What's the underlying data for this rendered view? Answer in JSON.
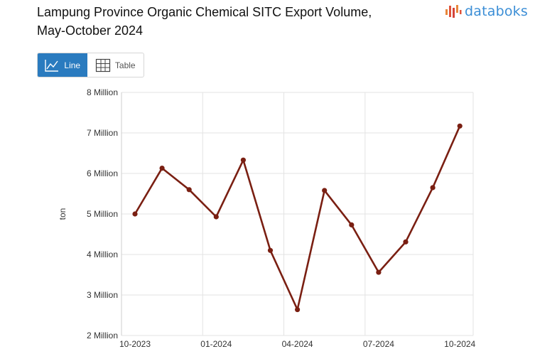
{
  "header": {
    "title_line1": "Lampung Province Organic Chemical SITC Export Volume,",
    "title_line2": "May-October 2024",
    "brand": "databoks"
  },
  "view_toggle": {
    "line_label": "Line",
    "table_label": "Table",
    "active": "line"
  },
  "colors": {
    "series": "#7a1f12",
    "active_button": "#2a7bbf",
    "brand": "#3b8ed6",
    "grid": "#dddddd"
  },
  "chart_data": {
    "type": "line",
    "title": "Lampung Province Organic Chemical SITC Export Volume, May-October 2024",
    "xlabel": "",
    "ylabel": "ton",
    "ylim": [
      2000000,
      8000000
    ],
    "yticks": [
      2000000,
      3000000,
      4000000,
      5000000,
      6000000,
      7000000,
      8000000
    ],
    "ytick_labels": [
      "2 Million",
      "3 Million",
      "4 Million",
      "5 Million",
      "6 Million",
      "7 Million",
      "8 Million"
    ],
    "x": [
      "10-2023",
      "11-2023",
      "12-2023",
      "01-2024",
      "02-2024",
      "03-2024",
      "04-2024",
      "05-2024",
      "06-2024",
      "07-2024",
      "08-2024",
      "09-2024",
      "10-2024"
    ],
    "xtick_labels": [
      "10-2023",
      "01-2024",
      "04-2024",
      "07-2024",
      "10-2024"
    ],
    "series": [
      {
        "name": "Export Volume",
        "values": [
          5000000,
          6130000,
          5600000,
          4930000,
          6330000,
          4100000,
          2640000,
          5580000,
          4730000,
          3560000,
          4310000,
          5650000,
          7170000
        ]
      }
    ],
    "grid": true
  }
}
